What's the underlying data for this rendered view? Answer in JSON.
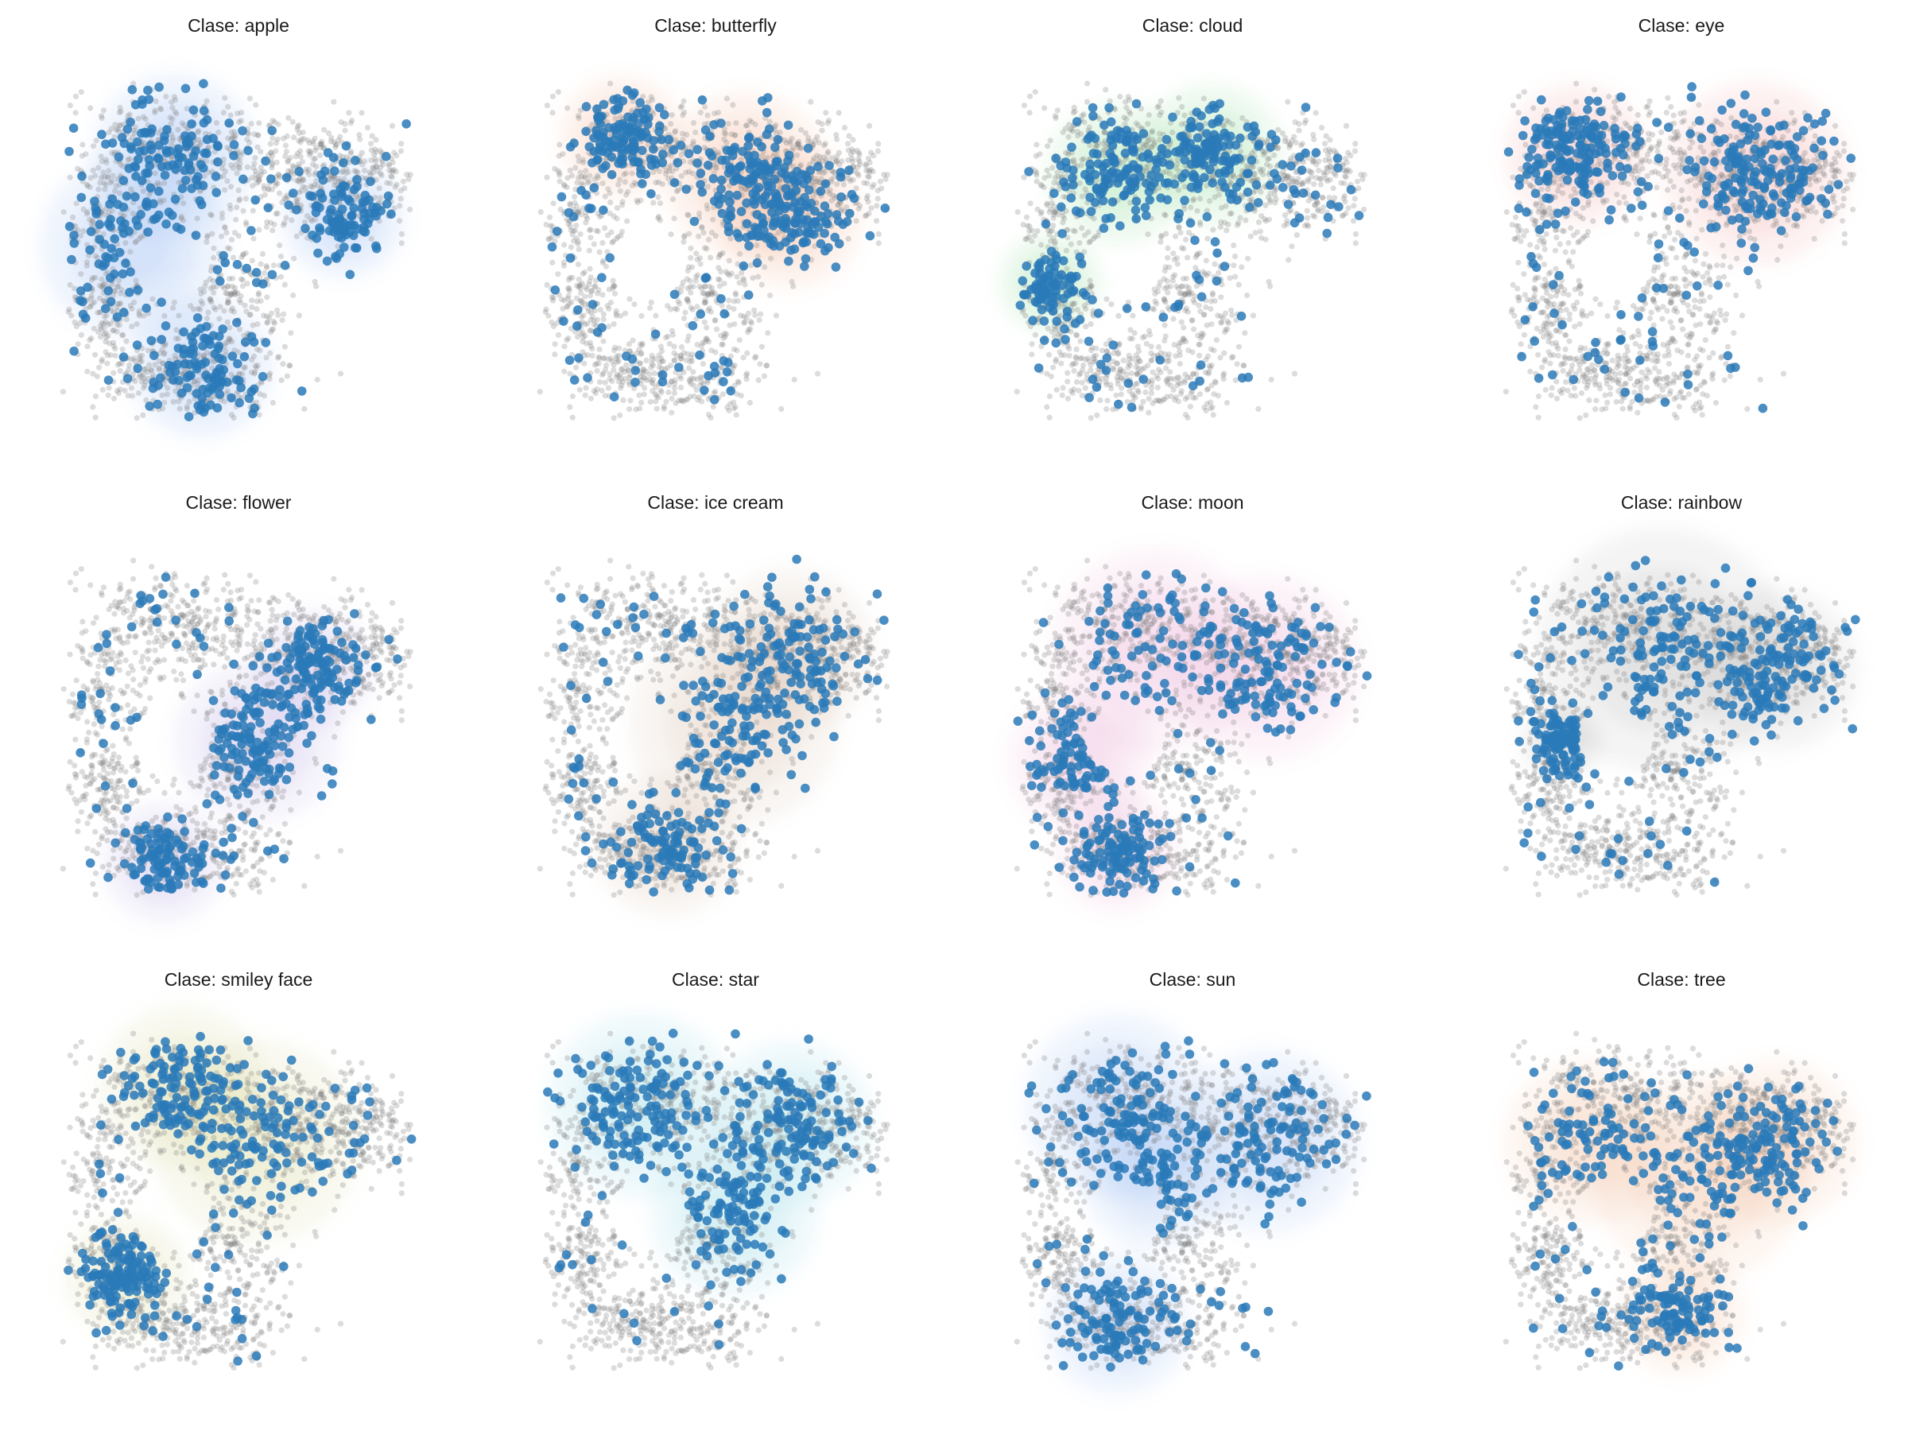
{
  "chart_data": {
    "type": "scatter",
    "description_axes": "none",
    "layout": "3x4 grid",
    "background_color": "#808080",
    "highlight_color": "#2a7ab8",
    "panels": [
      {
        "title": "Clase: apple",
        "class": "apple",
        "highlight_points": 420,
        "density_color": "#5b8ff0",
        "clusters": [
          {
            "x": 0.33,
            "y": 0.25,
            "s": 0.08
          },
          {
            "x": 0.4,
            "y": 0.83,
            "s": 0.07
          },
          {
            "x": 0.78,
            "y": 0.42,
            "s": 0.06
          },
          {
            "x": 0.22,
            "y": 0.5,
            "s": 0.09
          }
        ]
      },
      {
        "title": "Clase: butterfly",
        "class": "butterfly",
        "highlight_points": 430,
        "density_color": "#f08a5b",
        "clusters": [
          {
            "x": 0.7,
            "y": 0.42,
            "s": 0.07
          },
          {
            "x": 0.25,
            "y": 0.2,
            "s": 0.06
          },
          {
            "x": 0.58,
            "y": 0.3,
            "s": 0.08
          }
        ]
      },
      {
        "title": "Clase: cloud",
        "class": "cloud",
        "highlight_points": 420,
        "density_color": "#5bd06a",
        "clusters": [
          {
            "x": 0.3,
            "y": 0.3,
            "s": 0.07
          },
          {
            "x": 0.12,
            "y": 0.6,
            "s": 0.05
          },
          {
            "x": 0.55,
            "y": 0.25,
            "s": 0.07
          }
        ]
      },
      {
        "title": "Clase: eye",
        "class": "eye",
        "highlight_points": 420,
        "density_color": "#f07a7a",
        "clusters": [
          {
            "x": 0.22,
            "y": 0.25,
            "s": 0.07
          },
          {
            "x": 0.7,
            "y": 0.3,
            "s": 0.09
          }
        ]
      },
      {
        "title": "Clase: flower",
        "class": "flower",
        "highlight_points": 440,
        "density_color": "#9a85d8",
        "clusters": [
          {
            "x": 0.7,
            "y": 0.35,
            "s": 0.06
          },
          {
            "x": 0.3,
            "y": 0.88,
            "s": 0.06
          },
          {
            "x": 0.55,
            "y": 0.55,
            "s": 0.08
          }
        ]
      },
      {
        "title": "Clase: ice cream",
        "class": "ice cream",
        "highlight_points": 400,
        "density_color": "#c89a80",
        "clusters": [
          {
            "x": 0.37,
            "y": 0.83,
            "s": 0.07
          },
          {
            "x": 0.55,
            "y": 0.5,
            "s": 0.1
          },
          {
            "x": 0.7,
            "y": 0.3,
            "s": 0.08
          }
        ]
      },
      {
        "title": "Clase: moon",
        "class": "moon",
        "highlight_points": 440,
        "density_color": "#e08ac0",
        "clusters": [
          {
            "x": 0.2,
            "y": 0.6,
            "s": 0.07
          },
          {
            "x": 0.3,
            "y": 0.85,
            "s": 0.06
          },
          {
            "x": 0.4,
            "y": 0.3,
            "s": 0.1
          },
          {
            "x": 0.7,
            "y": 0.35,
            "s": 0.09
          }
        ]
      },
      {
        "title": "Clase: rainbow",
        "class": "rainbow",
        "highlight_points": 430,
        "density_color": "#909090",
        "clusters": [
          {
            "x": 0.18,
            "y": 0.55,
            "s": 0.04
          },
          {
            "x": 0.45,
            "y": 0.3,
            "s": 0.12
          },
          {
            "x": 0.75,
            "y": 0.35,
            "s": 0.08
          }
        ]
      },
      {
        "title": "Clase: smiley face",
        "class": "smiley face",
        "highlight_points": 430,
        "density_color": "#c8c870",
        "clusters": [
          {
            "x": 0.55,
            "y": 0.35,
            "s": 0.1
          },
          {
            "x": 0.2,
            "y": 0.72,
            "s": 0.06
          },
          {
            "x": 0.35,
            "y": 0.2,
            "s": 0.08
          }
        ]
      },
      {
        "title": "Clase: star",
        "class": "star",
        "highlight_points": 420,
        "density_color": "#5bc8d8",
        "clusters": [
          {
            "x": 0.7,
            "y": 0.3,
            "s": 0.08
          },
          {
            "x": 0.3,
            "y": 0.25,
            "s": 0.09
          },
          {
            "x": 0.55,
            "y": 0.55,
            "s": 0.08
          }
        ]
      },
      {
        "title": "Clase: sun",
        "class": "sun",
        "highlight_points": 440,
        "density_color": "#6a9af0",
        "clusters": [
          {
            "x": 0.4,
            "y": 0.45,
            "s": 0.07
          },
          {
            "x": 0.3,
            "y": 0.25,
            "s": 0.09
          },
          {
            "x": 0.7,
            "y": 0.35,
            "s": 0.09
          },
          {
            "x": 0.3,
            "y": 0.85,
            "s": 0.07
          }
        ]
      },
      {
        "title": "Clase: tree",
        "class": "tree",
        "highlight_points": 430,
        "density_color": "#f09a70",
        "clusters": [
          {
            "x": 0.55,
            "y": 0.45,
            "s": 0.1
          },
          {
            "x": 0.5,
            "y": 0.82,
            "s": 0.06
          },
          {
            "x": 0.75,
            "y": 0.35,
            "s": 0.08
          },
          {
            "x": 0.25,
            "y": 0.35,
            "s": 0.08
          }
        ]
      }
    ]
  }
}
